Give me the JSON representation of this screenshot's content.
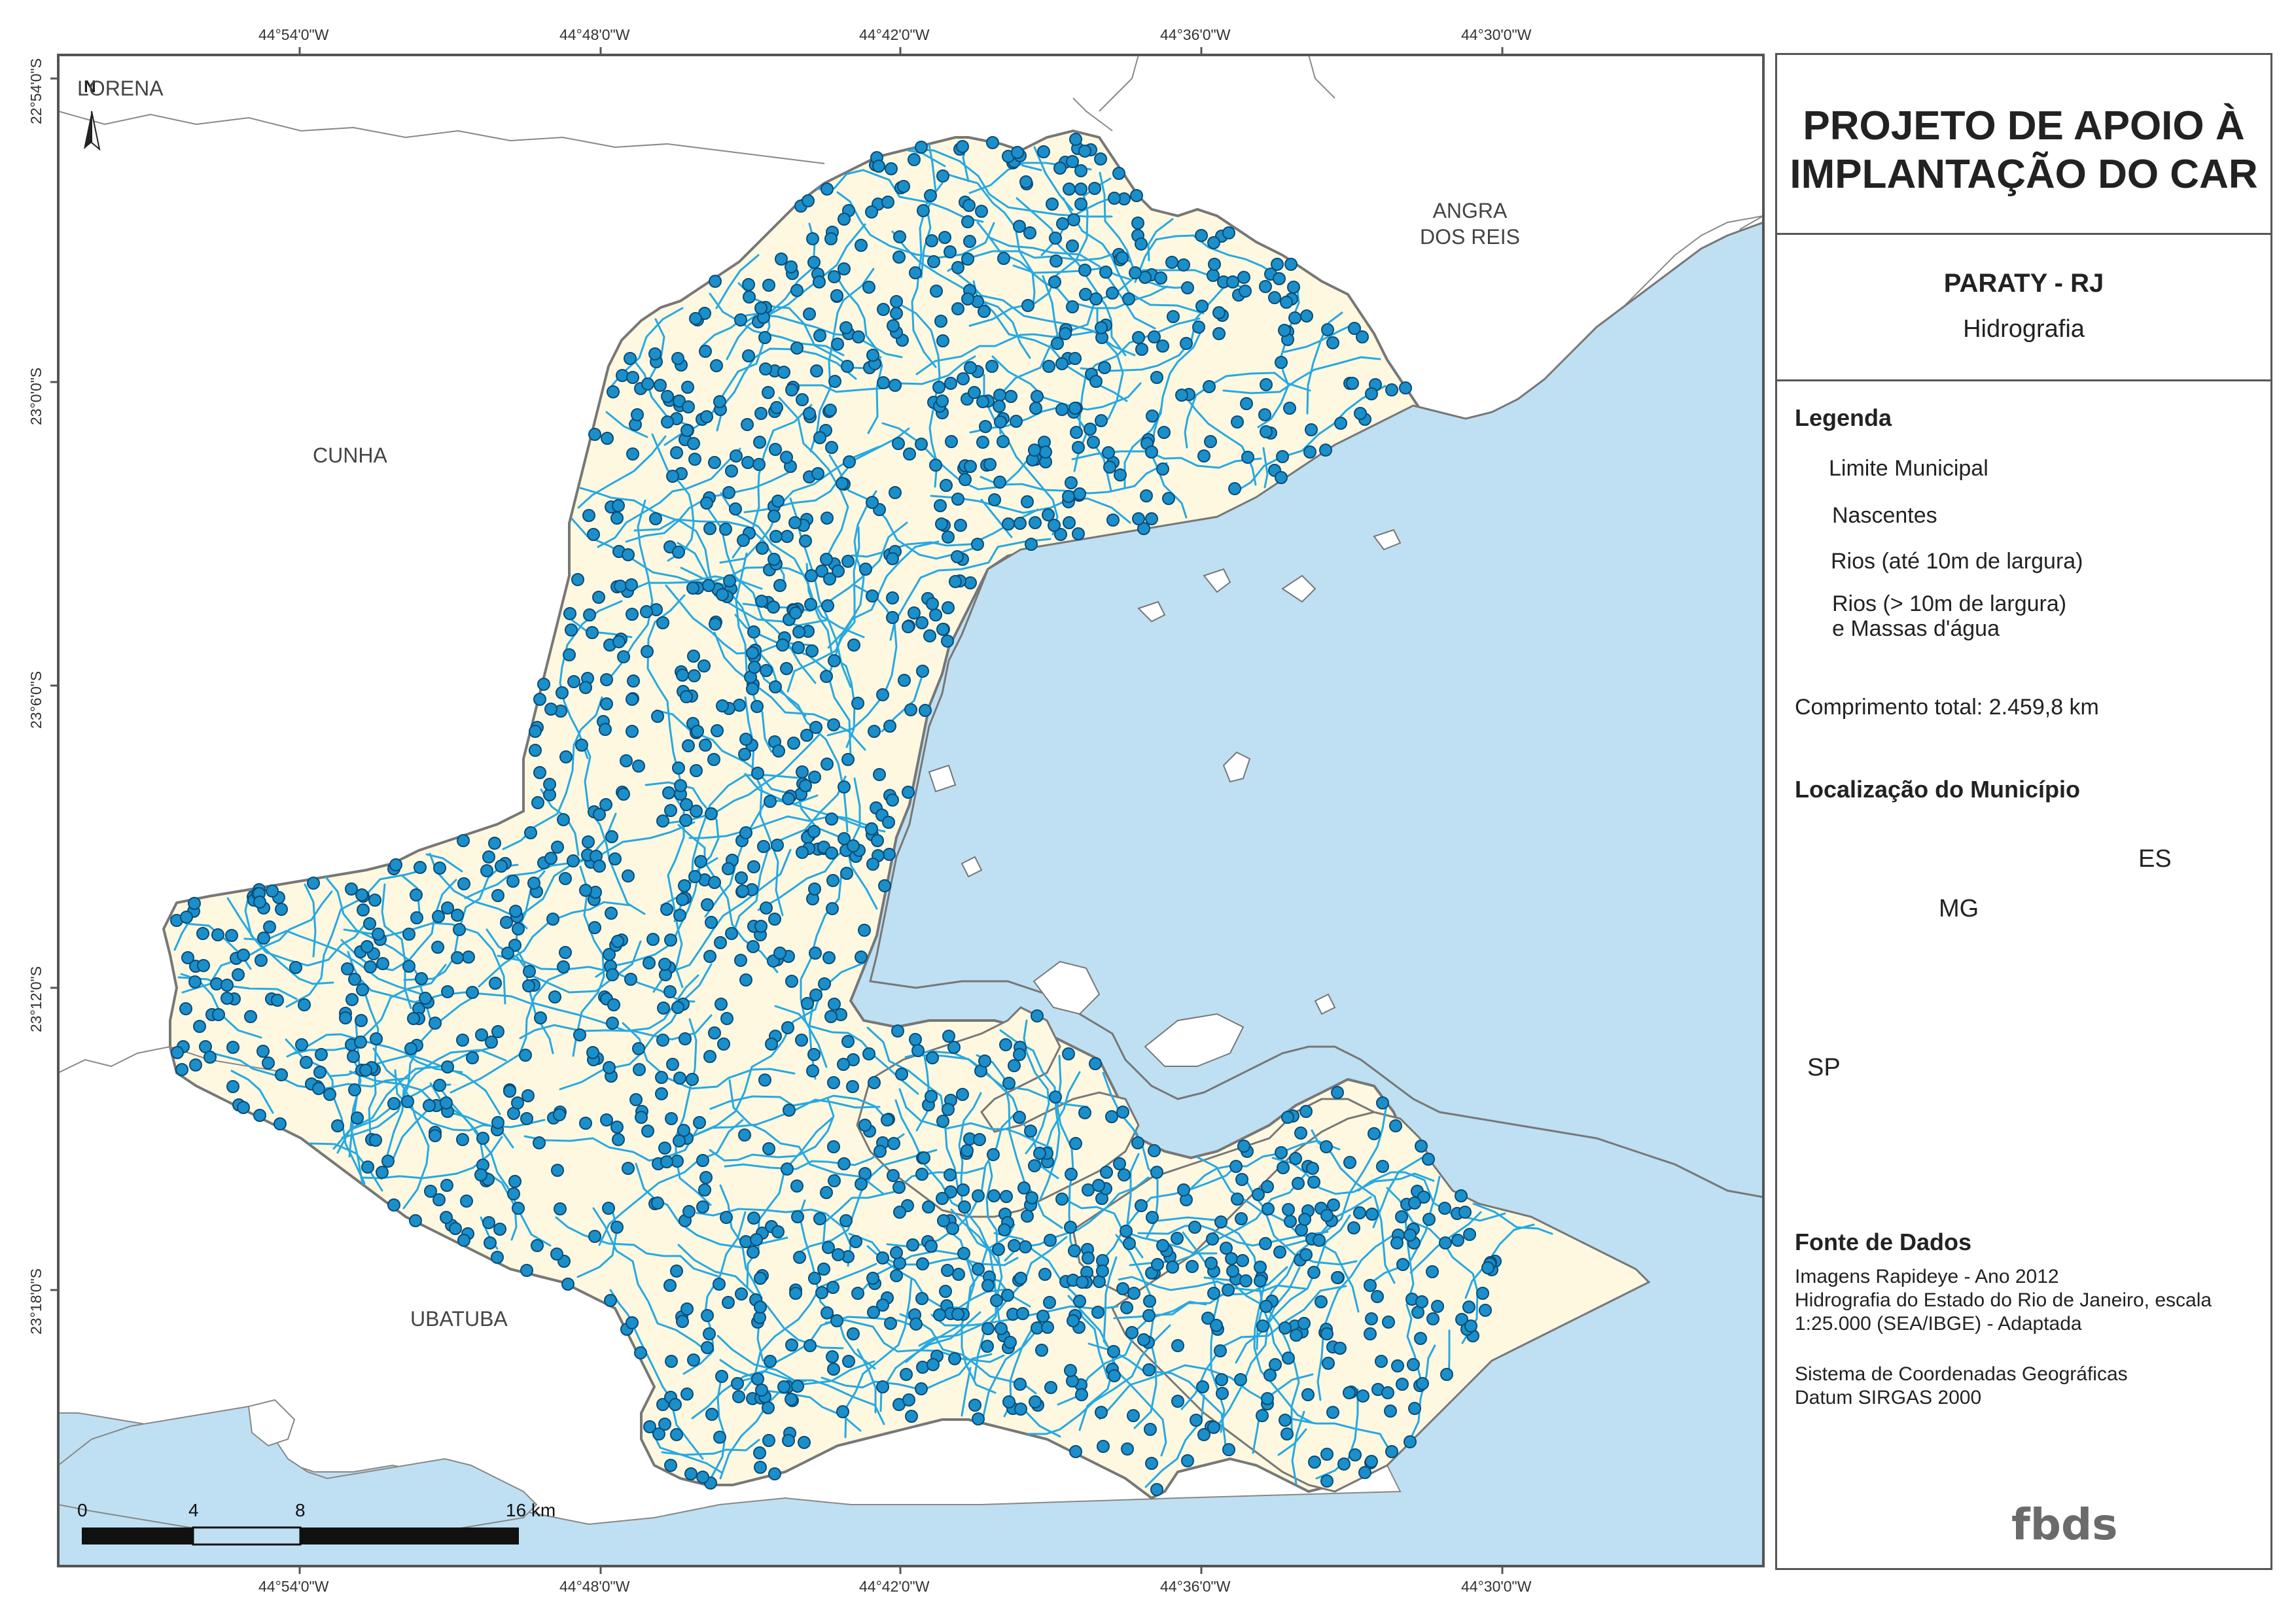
{
  "map": {
    "north_arrow_label": "N",
    "neighbors": [
      {
        "label": "LORENA",
        "id": "lorena"
      },
      {
        "label": "ANGRA\nDOS REIS",
        "id": "angra"
      },
      {
        "label": "CUNHA",
        "id": "cunha"
      },
      {
        "label": "UBATUBA",
        "id": "ubatuba"
      }
    ],
    "lon_ticks_top": [
      "44°54'0\"W",
      "44°48'0\"W",
      "44°42'0\"W",
      "44°36'0\"W",
      "44°30'0\"W"
    ],
    "lon_ticks_bottom": [
      "44°54'0\"W",
      "44°48'0\"W",
      "44°42'0\"W",
      "44°36'0\"W",
      "44°30'0\"W"
    ],
    "lat_ticks": [
      "22°54'0\"S",
      "23°0'0\"S",
      "23°6'0\"S",
      "23°12'0\"S",
      "23°18'0\"S"
    ],
    "scale_bar": {
      "labels": [
        "0",
        "4",
        "8",
        "16 km"
      ]
    },
    "colors": {
      "sea": "#bfe0f2",
      "land": "#ffffff",
      "municipality": "#fff8e1",
      "river": "#26a9e0",
      "spring": "#1b8fc9",
      "spring_stroke": "#0a4c78",
      "border": "#777777"
    }
  },
  "panel": {
    "title": "PROJETO DE APOIO À IMPLANTAÇÃO DO CAR",
    "municipality": "PARATY - RJ",
    "theme": "Hidrografia",
    "legend": {
      "heading": "Legenda",
      "items": [
        {
          "label": "Limite Municipal",
          "symbol": "municipal-boundary"
        },
        {
          "label": "Nascentes",
          "symbol": "spring-point"
        },
        {
          "label": "Rios (até 10m de largura)",
          "symbol": "river-line"
        },
        {
          "label": "Rios (> 10m de largura)\ne Massas d'água",
          "symbol": "water-polygon"
        }
      ]
    },
    "total_length": "Comprimento total:  2.459,8 km",
    "location": {
      "heading": "Localização do Município",
      "labels": {
        "mg": "MG",
        "es": "ES",
        "sp": "SP"
      }
    },
    "sources": {
      "heading": "Fonte de Dados",
      "lines": [
        "Imagens Rapideye - Ano 2012",
        "Hidrografia do Estado do Rio de Janeiro, escala",
        "1:25.000 (SEA/IBGE) - Adaptada",
        "",
        "Sistema de Coordenadas Geográficas",
        "Datum SIRGAS 2000"
      ]
    },
    "logo_text": "fbds"
  }
}
